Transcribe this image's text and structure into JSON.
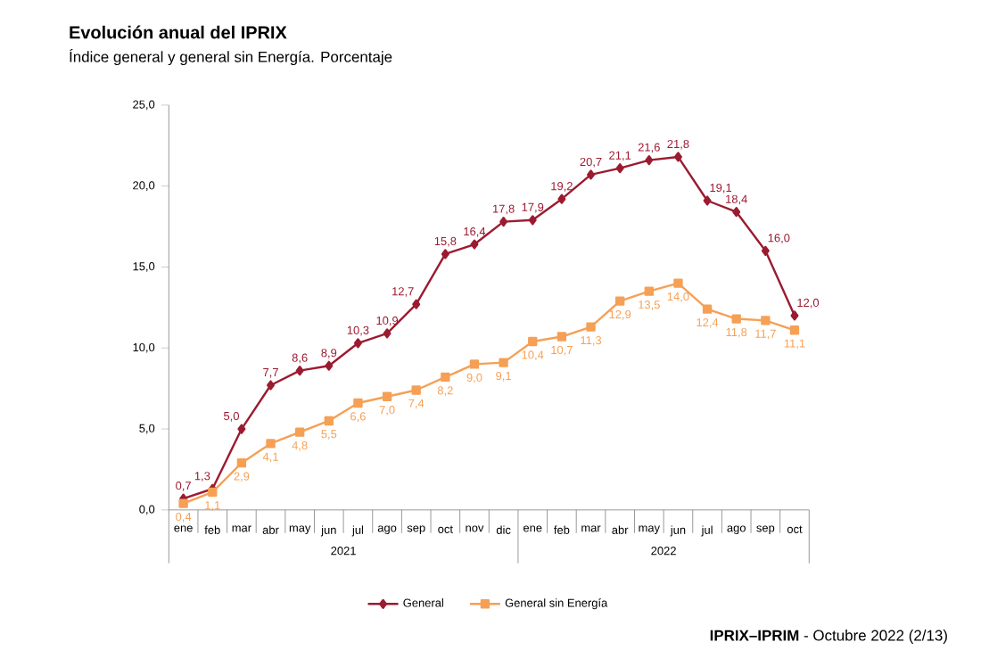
{
  "chart_data": {
    "type": "line",
    "title": "Evolución anual del IPRIX",
    "subtitle": "Índice general y general sin Energía. Porcentaje",
    "categories": [
      "ene",
      "feb",
      "mar",
      "abr",
      "may",
      "jun",
      "jul",
      "ago",
      "sep",
      "oct",
      "nov",
      "dic",
      "ene",
      "feb",
      "mar",
      "abr",
      "may",
      "jun",
      "jul",
      "ago",
      "sep",
      "oct"
    ],
    "series": [
      {
        "name": "General",
        "color": "#9b1b30",
        "marker": "diamond",
        "values": [
          0.7,
          1.3,
          5.0,
          7.7,
          8.6,
          8.9,
          10.3,
          10.9,
          12.7,
          15.8,
          16.4,
          17.8,
          17.9,
          19.2,
          20.7,
          21.1,
          21.6,
          21.8,
          19.1,
          18.4,
          16.0,
          12.0
        ],
        "value_labels": [
          "0,7",
          "1,3",
          "5,0",
          "7,7",
          "8,6",
          "8,9",
          "10,3",
          "10,9",
          "12,7",
          "15,8",
          "16,4",
          "17,8",
          "17,9",
          "19,2",
          "20,7",
          "21,1",
          "21,6",
          "21,8",
          "19,1",
          "18,4",
          "16,0",
          "12,0"
        ]
      },
      {
        "name": "General sin Energía",
        "color": "#f5a055",
        "marker": "square",
        "values": [
          0.4,
          1.1,
          2.9,
          4.1,
          4.8,
          5.5,
          6.6,
          7.0,
          7.4,
          8.2,
          9.0,
          9.1,
          10.4,
          10.7,
          11.3,
          12.9,
          13.5,
          14.0,
          12.4,
          11.8,
          11.7,
          11.1
        ],
        "value_labels": [
          "0,4",
          "1,1",
          "2,9",
          "4,1",
          "4,8",
          "5,5",
          "6,6",
          "7,0",
          "7,4",
          "8,2",
          "9,0",
          "9,1",
          "10,4",
          "10,7",
          "11,3",
          "12,9",
          "13,5",
          "14,0",
          "12,4",
          "11,8",
          "11,7",
          "11,1"
        ]
      }
    ],
    "ylim": [
      0,
      25
    ],
    "yticks": [
      {
        "value": 0,
        "label": "0,0"
      },
      {
        "value": 5,
        "label": "5,0"
      },
      {
        "value": 10,
        "label": "10,0"
      },
      {
        "value": 15,
        "label": "15,0"
      },
      {
        "value": 20,
        "label": "20,0"
      },
      {
        "value": 25,
        "label": "25,0"
      }
    ],
    "grid": false,
    "legend": "bottom",
    "annotations": [
      "2021",
      "2022",
      "**IPRIX–IPRIM** - Octubre 2022 (2/13)"
    ]
  }
}
